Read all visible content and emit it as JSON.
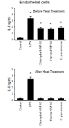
{
  "title": "Endothelial cells",
  "chart_data": [
    {
      "type": "bar",
      "title": "Before Heat Treatment",
      "y_label": "IL-6 ng/ml",
      "categories": [
        "Control",
        "LPS",
        "Chlamydial HSP 60",
        "Human HSP 60",
        "C. pneumoniae"
      ],
      "values": [
        0.3,
        3.4,
        1.8,
        1.7,
        1.9
      ],
      "errors": [
        0.05,
        0.3,
        0.15,
        0.15,
        0.15
      ],
      "color": "#000000",
      "ylim": [
        0,
        5
      ],
      "yticks": [
        0,
        1,
        2,
        3,
        4,
        5
      ],
      "annotations": [
        {
          "category": "LPS",
          "text": "*"
        },
        {
          "category": "Chlamydial HSP 60",
          "text": "*"
        },
        {
          "category": "Human HSP 60",
          "text": "*"
        },
        {
          "category": "C. pneumoniae",
          "text": "*"
        }
      ]
    },
    {
      "type": "bar",
      "title": "After Heat Treatment",
      "y_label": "IL-6 ng/ml",
      "categories": [
        "Control",
        "LPS",
        "Chlamydial HSP 60",
        "Human HSP 60",
        "C. pneumoniae"
      ],
      "values": [
        0.3,
        3.4,
        0.3,
        0.3,
        0.3
      ],
      "errors": [
        0.05,
        0.3,
        0.05,
        0.05,
        0.05
      ],
      "color": "#000000",
      "ylim": [
        0,
        5
      ],
      "yticks": [
        0,
        1,
        2,
        3,
        4,
        5
      ],
      "annotations": [
        {
          "category": "LPS",
          "text": "*"
        }
      ]
    }
  ]
}
